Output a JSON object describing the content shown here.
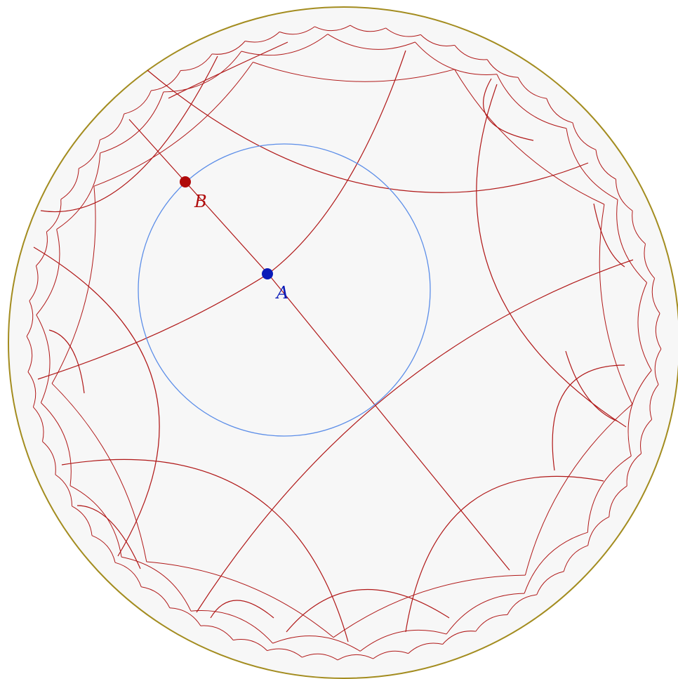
{
  "figure": {
    "colors": {
      "boundary": "#a38c1f",
      "disk_fill": "#f7f7f7",
      "tiling": "#b01818",
      "circle": "#5b8de8",
      "point_a": "#0a1ab8",
      "point_b": "#b00a0a"
    },
    "points": {
      "a": {
        "label": "A"
      },
      "b": {
        "label": "B"
      }
    }
  }
}
